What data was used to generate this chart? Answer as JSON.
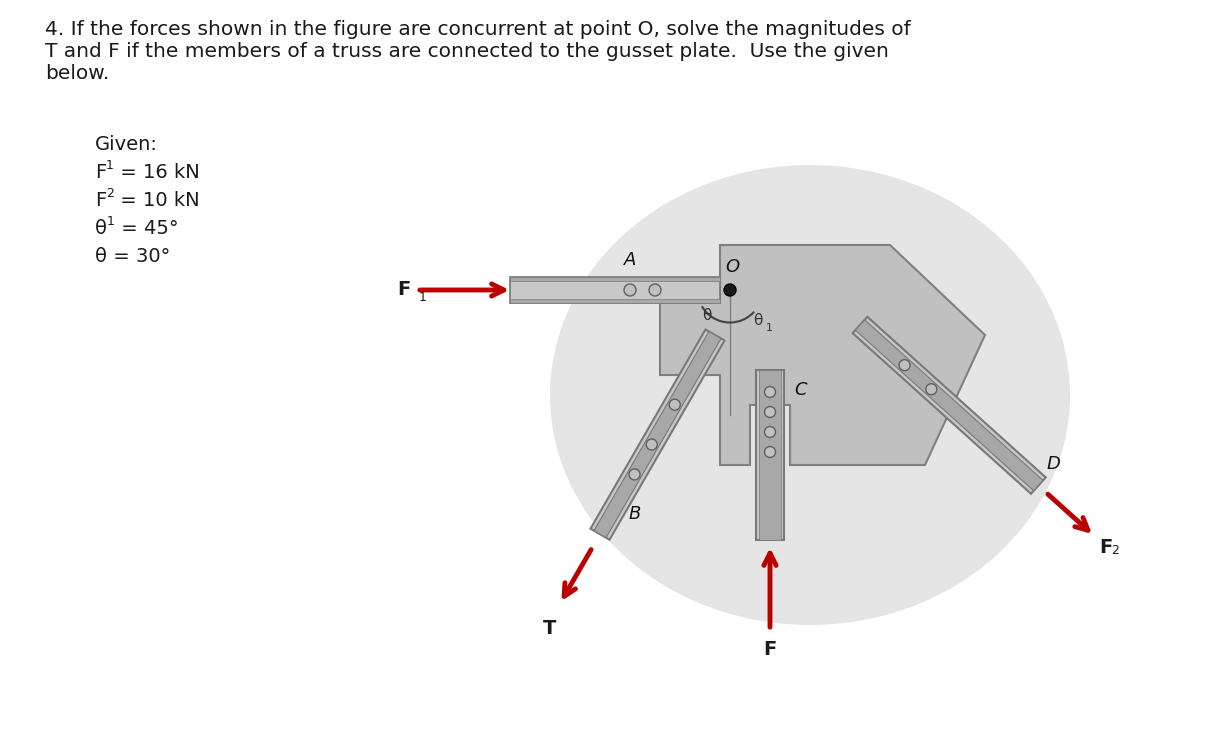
{
  "title_line1": "4. If the forces shown in the figure are concurrent at point O, solve the magnitudes of",
  "title_line2": "T and F if the members of a truss are connected to the gusset plate.  Use the given",
  "title_line3": "below.",
  "bg_color": "#ffffff",
  "text_color": "#1a1a1a",
  "arrow_color": "#bb0000",
  "plate_color": "#c0c0c0",
  "plate_dark": "#a0a0a0",
  "plate_edge": "#808080",
  "shadow_color": "#d0d0d0",
  "member_face": "#c8c8c8",
  "member_dark": "#a8a8a8",
  "member_edge": "#787878",
  "bolt_face": "#c0c0c0",
  "bolt_edge": "#606060",
  "label_color": "#111111",
  "ox": 730,
  "oy": 380,
  "fontsize_title": 14.5,
  "fontsize_given": 14,
  "fontsize_label": 13
}
